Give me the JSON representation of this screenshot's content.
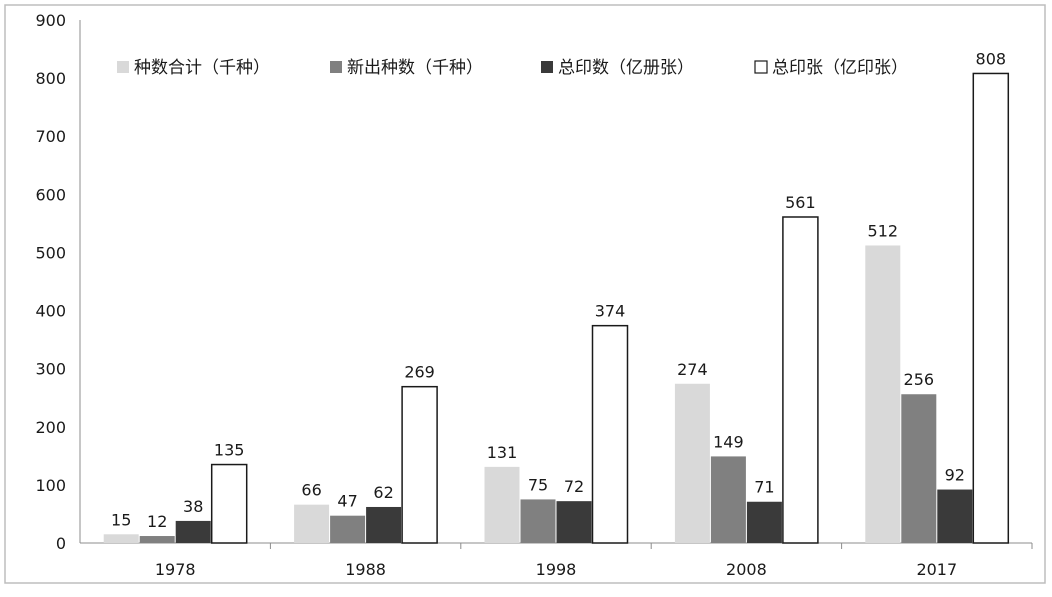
{
  "chart_data": {
    "type": "bar",
    "categories": [
      "1978",
      "1988",
      "1998",
      "2008",
      "2017"
    ],
    "series": [
      {
        "name": "种数合计（千种）",
        "values": [
          15,
          66,
          131,
          274,
          512
        ],
        "color": "#d9d9d9",
        "stroke": "#d9d9d9"
      },
      {
        "name": "新出种数（千种）",
        "values": [
          12,
          47,
          75,
          149,
          256
        ],
        "color": "#808080",
        "stroke": "#808080"
      },
      {
        "name": "总印数（亿册张）",
        "values": [
          38,
          62,
          72,
          71,
          92
        ],
        "color": "#3a3a3a",
        "stroke": "#3a3a3a"
      },
      {
        "name": "总印张（亿印张）",
        "values": [
          135,
          269,
          374,
          561,
          808
        ],
        "color": "#ffffff",
        "stroke": "#1a1a1a"
      }
    ],
    "yticks": [
      "0",
      "100",
      "200",
      "300",
      "400",
      "500",
      "600",
      "700",
      "800",
      "900"
    ],
    "ylim": [
      0,
      900
    ],
    "grid": false,
    "legend_position": "top"
  }
}
